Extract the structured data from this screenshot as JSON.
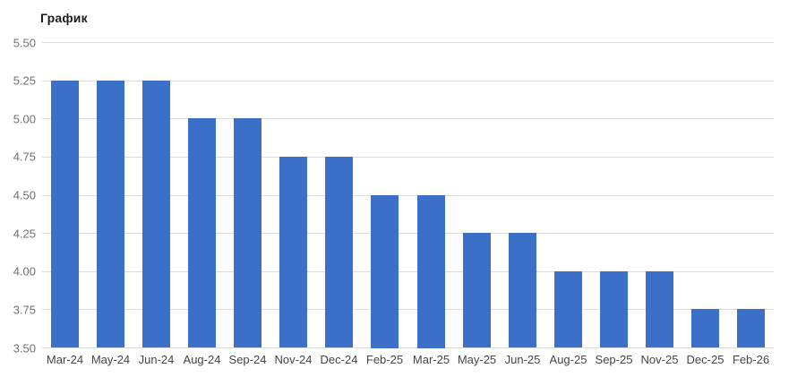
{
  "chart_data": {
    "type": "bar",
    "title": "График",
    "categories": [
      "Mar-24",
      "May-24",
      "Jun-24",
      "Aug-24",
      "Sep-24",
      "Nov-24",
      "Dec-24",
      "Feb-25",
      "Mar-25",
      "May-25",
      "Jun-25",
      "Aug-25",
      "Sep-25",
      "Nov-25",
      "Dec-25",
      "Feb-26"
    ],
    "values": [
      5.25,
      5.25,
      5.25,
      5.0,
      5.0,
      4.75,
      4.75,
      4.5,
      4.5,
      4.25,
      4.25,
      4.0,
      4.0,
      4.0,
      3.75,
      3.75
    ],
    "ylim": [
      3.5,
      5.5
    ],
    "ytick_labels": [
      "5.50",
      "5.25",
      "5.00",
      "4.75",
      "4.50",
      "4.25",
      "4.00",
      "3.75",
      "3.50"
    ],
    "xlabel": "",
    "ylabel": "",
    "grid": "horizontal",
    "legend": "none",
    "colors": {
      "bar": "#3b6fc8",
      "grid": "#dcdcdc",
      "y_tick_text": "#717171",
      "x_tick_text": "#454545",
      "title_text": "#1a1a1a",
      "background": "#ffffff"
    }
  }
}
